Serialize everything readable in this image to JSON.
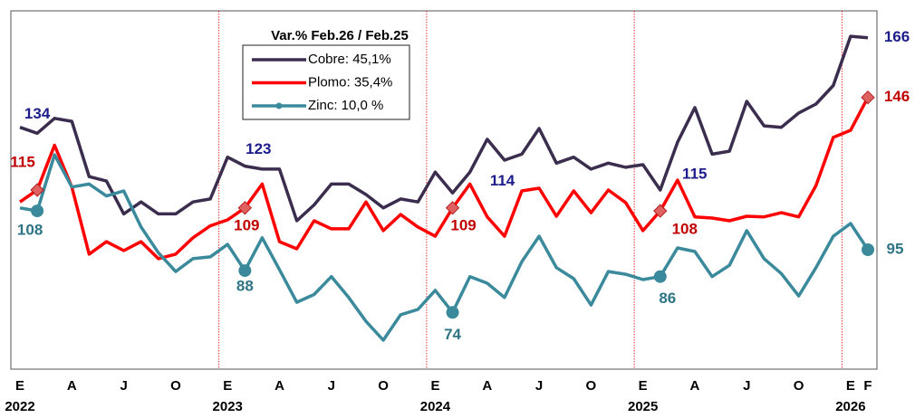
{
  "chart_data": {
    "type": "line",
    "categories": [
      "E",
      null,
      null,
      "A",
      null,
      null,
      "J",
      null,
      null,
      "O",
      null,
      null,
      "E",
      null,
      null,
      "A",
      null,
      null,
      "J",
      null,
      null,
      "O",
      null,
      null,
      "E",
      null,
      null,
      "A",
      null,
      null,
      "J",
      null,
      null,
      "O",
      null,
      null,
      "E",
      null,
      null,
      "A",
      null,
      null,
      "J",
      null,
      null,
      "O",
      null,
      null,
      "E",
      "F"
    ],
    "category_groups": [
      {
        "label": "2022",
        "start": 0
      },
      {
        "label": "2023",
        "start": 12
      },
      {
        "label": "2024",
        "start": 24
      },
      {
        "label": "2025",
        "start": 36
      },
      {
        "label": "2026",
        "start": 48
      }
    ],
    "legend_title": "Var.% Feb.26 / Feb.25",
    "ylim": [
      55,
      175
    ],
    "series": [
      {
        "name": "Cobre: 45,1%",
        "color": "#3b2d4e",
        "label_color": "#1c1c8a",
        "marker": null,
        "values": [
          136,
          134,
          139,
          138,
          119.5,
          118,
          107,
          111,
          107,
          107,
          111,
          112,
          126,
          123,
          122,
          122,
          104.7,
          110,
          117,
          117,
          113.5,
          109,
          112,
          111,
          121,
          114,
          121,
          132,
          125,
          127,
          135.6,
          124,
          126,
          122,
          124,
          122.6,
          123.5,
          115,
          131,
          142.6,
          127,
          128,
          144.7,
          136.5,
          136,
          140.8,
          143.8,
          150,
          166.5,
          166
        ],
        "value_labels": [
          null,
          "134",
          null,
          null,
          null,
          null,
          null,
          null,
          null,
          null,
          null,
          null,
          null,
          "123",
          null,
          null,
          null,
          null,
          null,
          null,
          null,
          null,
          null,
          null,
          null,
          "114",
          null,
          null,
          null,
          null,
          null,
          null,
          null,
          null,
          null,
          null,
          null,
          "115",
          null,
          null,
          null,
          null,
          null,
          null,
          null,
          null,
          null,
          null,
          null,
          "166"
        ]
      },
      {
        "name": "Plomo: 35,4%",
        "color": "#ff0000",
        "label_color": "#c00000",
        "marker": "diamond",
        "values": [
          111,
          115,
          130,
          116,
          93.5,
          97.7,
          94.7,
          97.7,
          92,
          93.5,
          99,
          103,
          105,
          109,
          117,
          97.7,
          95.3,
          104.7,
          102,
          102,
          111,
          101.4,
          106.8,
          102.6,
          99.5,
          109,
          117,
          106,
          99.5,
          114.7,
          115.6,
          106.2,
          114.7,
          107.4,
          115,
          110.8,
          101.4,
          108,
          118.3,
          106,
          105.6,
          104.7,
          106.2,
          106,
          107.4,
          106,
          116.5,
          132.6,
          135,
          146
        ],
        "value_labels": [
          null,
          "115",
          null,
          null,
          null,
          null,
          null,
          null,
          null,
          null,
          null,
          null,
          null,
          "109",
          null,
          null,
          null,
          null,
          null,
          null,
          null,
          null,
          null,
          null,
          null,
          "109",
          null,
          null,
          null,
          null,
          null,
          null,
          null,
          null,
          null,
          null,
          null,
          "108",
          null,
          null,
          null,
          null,
          null,
          null,
          null,
          null,
          null,
          null,
          null,
          "146"
        ]
      },
      {
        "name": "Zinc: 10,0 %",
        "color": "#3a8a9c",
        "label_color": "#2f7485",
        "marker": "circle",
        "values": [
          109,
          108,
          126.8,
          116,
          117,
          113,
          114.7,
          102.6,
          94,
          87.7,
          92,
          92.6,
          96.8,
          88,
          99,
          88.3,
          77.4,
          80,
          86,
          79,
          71,
          64.7,
          73.2,
          75,
          81.4,
          74,
          86,
          83.8,
          79,
          91,
          99.5,
          89,
          85.3,
          76.5,
          87.7,
          86.8,
          85,
          86,
          95.6,
          94.4,
          86,
          89.8,
          101.4,
          92,
          87,
          79.5,
          89,
          99.5,
          103.8,
          95
        ],
        "value_labels": [
          null,
          "108",
          null,
          null,
          null,
          null,
          null,
          null,
          null,
          null,
          null,
          null,
          null,
          "88",
          null,
          null,
          null,
          null,
          null,
          null,
          null,
          null,
          null,
          null,
          null,
          "74",
          null,
          null,
          null,
          null,
          null,
          null,
          null,
          null,
          null,
          null,
          null,
          "86",
          null,
          null,
          null,
          null,
          null,
          null,
          null,
          null,
          null,
          null,
          null,
          "95"
        ]
      }
    ]
  }
}
